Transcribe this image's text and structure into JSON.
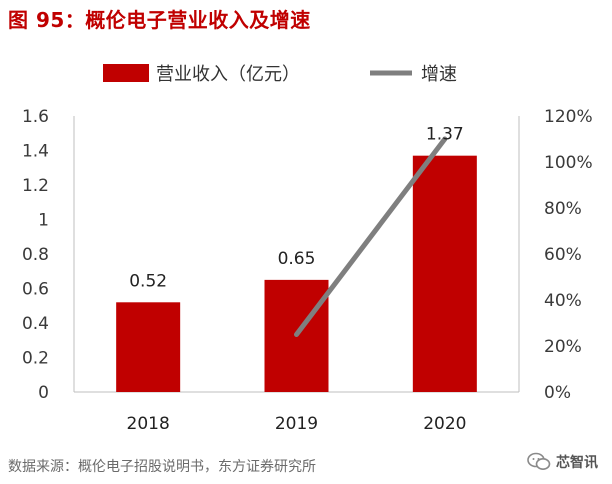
{
  "figure_title": "图 95：概伦电子营业收入及增速",
  "source_note": "数据来源：概伦电子招股说明书，东方证券研究所",
  "watermark": {
    "text": "芯智讯",
    "icon": "wechat-icon"
  },
  "colors": {
    "bar": "#c00000",
    "line": "#7f7f7f",
    "title": "#c00000"
  },
  "chart_data": {
    "type": "bar",
    "title": "",
    "categories": [
      "2018",
      "2019",
      "2020"
    ],
    "series": [
      {
        "name": "营业收入（亿元）",
        "type": "bar",
        "axis": "left",
        "values": [
          0.52,
          0.65,
          1.37
        ],
        "data_labels": [
          "0.52",
          "0.65",
          "1.37"
        ]
      },
      {
        "name": "增速",
        "type": "line",
        "axis": "right",
        "values": [
          null,
          0.25,
          1.1
        ]
      }
    ],
    "y_left": {
      "min": 0,
      "max": 1.6,
      "ticks": [
        "0",
        "0.2",
        "0.4",
        "0.6",
        "0.8",
        "1",
        "1.2",
        "1.4",
        "1.6"
      ]
    },
    "y_right": {
      "min": 0,
      "max": 1.2,
      "ticks": [
        "0%",
        "20%",
        "40%",
        "60%",
        "80%",
        "100%",
        "120%"
      ]
    },
    "legend": {
      "position": "top"
    },
    "grid": false
  }
}
